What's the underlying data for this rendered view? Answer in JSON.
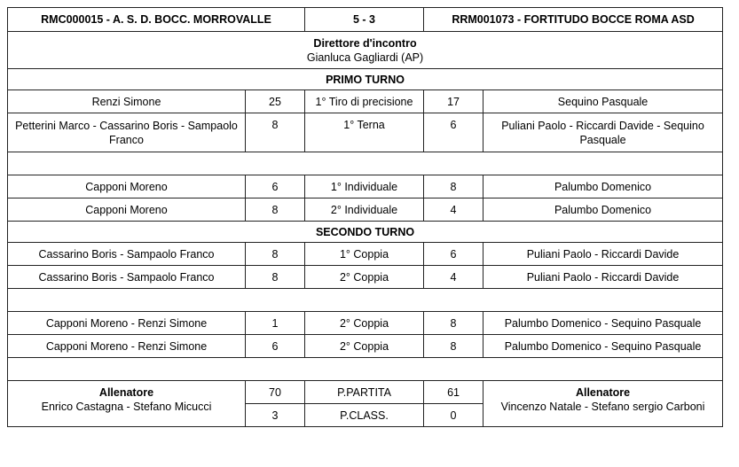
{
  "header": {
    "home_team": "RMC000015 - A. S. D. BOCC. MORROVALLE",
    "score": "5 - 3",
    "away_team": "RRM001073 - FORTITUDO BOCCE ROMA ASD"
  },
  "director": {
    "label": "Direttore d'incontro",
    "name": "Gianluca Gagliardi (AP)"
  },
  "primo_turno": {
    "title": "PRIMO TURNO",
    "rows": [
      {
        "home": "Renzi Simone",
        "home_score": "25",
        "game": "1° Tiro di precisione",
        "away_score": "17",
        "away": "Sequino Pasquale"
      },
      {
        "home": "Petterini Marco - Cassarino Boris - Sampaolo Franco",
        "home_score": "8",
        "game": "1° Terna",
        "away_score": "6",
        "away": "Puliani Paolo - Riccardi Davide - Sequino Pasquale"
      },
      {
        "empty": true
      },
      {
        "home": "Capponi Moreno",
        "home_score": "6",
        "game": "1° Individuale",
        "away_score": "8",
        "away": "Palumbo Domenico"
      },
      {
        "home": "Capponi Moreno",
        "home_score": "8",
        "game": "2° Individuale",
        "away_score": "4",
        "away": "Palumbo Domenico"
      }
    ]
  },
  "secondo_turno": {
    "title": "SECONDO TURNO",
    "rows": [
      {
        "home": "Cassarino Boris - Sampaolo Franco",
        "home_score": "8",
        "game": "1° Coppia",
        "away_score": "6",
        "away": "Puliani Paolo - Riccardi Davide"
      },
      {
        "home": "Cassarino Boris - Sampaolo Franco",
        "home_score": "8",
        "game": "2° Coppia",
        "away_score": "4",
        "away": "Puliani Paolo - Riccardi Davide"
      },
      {
        "empty": true
      },
      {
        "home": "Capponi Moreno - Renzi Simone",
        "home_score": "1",
        "game": "2° Coppia",
        "away_score": "8",
        "away": "Palumbo Domenico - Sequino Pasquale"
      },
      {
        "home": "Capponi Moreno - Renzi Simone",
        "home_score": "6",
        "game": "2° Coppia",
        "away_score": "8",
        "away": "Palumbo Domenico - Sequino Pasquale"
      },
      {
        "empty": true
      }
    ]
  },
  "footer": {
    "home_coach_label": "Allenatore",
    "home_coaches": "Enrico Castagna - Stefano Micucci",
    "away_coach_label": "Allenatore",
    "away_coaches": "Vincenzo Natale - Stefano sergio Carboni",
    "p_partita_label": "P.PARTITA",
    "p_partita_home": "70",
    "p_partita_away": "61",
    "p_class_label": "P.CLASS.",
    "p_class_home": "3",
    "p_class_away": "0"
  }
}
